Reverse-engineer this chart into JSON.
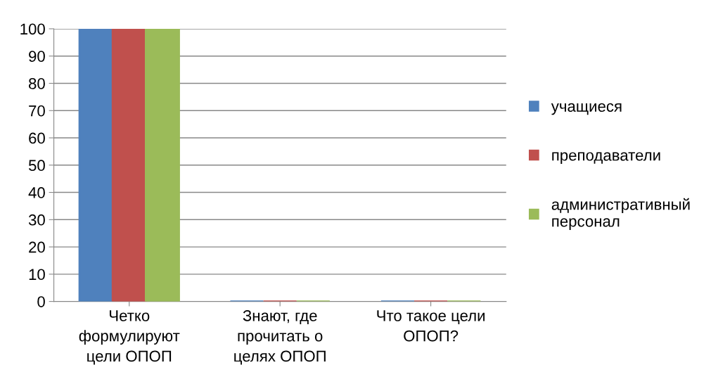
{
  "chart_data": {
    "type": "bar",
    "categories": [
      "Четко формулируют цели ОПОП",
      "Знают, где прочитать о целях ОПОП",
      "Что такое цели ОПОП?"
    ],
    "series": [
      {
        "name": "учащиеся",
        "color": "#4f81bd",
        "values": [
          100,
          0,
          0
        ]
      },
      {
        "name": "преподаватели",
        "color": "#c0504d",
        "values": [
          100,
          0,
          0
        ]
      },
      {
        "name": "административный персонал",
        "color": "#9bbb59",
        "values": [
          100,
          0,
          0
        ]
      }
    ],
    "ylim": [
      0,
      100
    ],
    "yticks": [
      0,
      10,
      20,
      30,
      40,
      50,
      60,
      70,
      80,
      90,
      100
    ],
    "grid": "y",
    "legend": "right"
  }
}
